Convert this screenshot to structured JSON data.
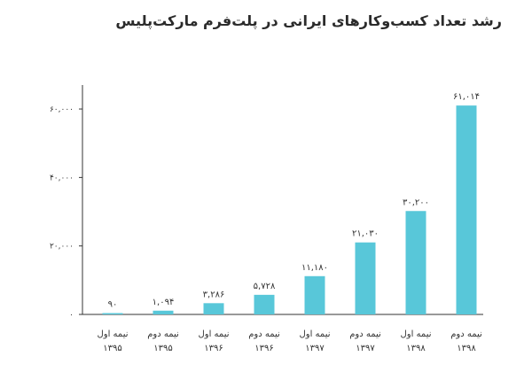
{
  "chart_data": {
    "type": "bar",
    "title": "رشد تعداد کسب‌وکارهای ایرانی در پلت‌فرم مارکت‌پلیس",
    "categories": [
      [
        "نیمه اول",
        "۱۳۹۵"
      ],
      [
        "نیمه دوم",
        "۱۳۹۵"
      ],
      [
        "نیمه اول",
        "۱۳۹۶"
      ],
      [
        "نیمه دوم",
        "۱۳۹۶"
      ],
      [
        "نیمه اول",
        "۱۳۹۷"
      ],
      [
        "نیمه دوم",
        "۱۳۹۷"
      ],
      [
        "نیمه اول",
        "۱۳۹۸"
      ],
      [
        "نیمه دوم",
        "۱۳۹۸"
      ]
    ],
    "values": [
      90,
      1094,
      3286,
      5728,
      11180,
      21030,
      30200,
      61014
    ],
    "value_labels": [
      "۹۰",
      "۱,۰۹۴",
      "۳,۲۸۶",
      "۵,۷۲۸",
      "۱۱,۱۸۰",
      "۲۱,۰۳۰",
      "۳۰,۲۰۰",
      "۶۱,۰۱۴"
    ],
    "ylim": [
      0,
      67000
    ],
    "yticks": [
      0,
      20000,
      40000,
      60000
    ],
    "ytick_labels": [
      "۰",
      "۲۰,۰۰۰",
      "۴۰,۰۰۰",
      "۶۰,۰۰۰"
    ],
    "xlabel": "",
    "ylabel": "",
    "grid": false,
    "bar_color": "#58c7d9",
    "axis_color": "#333333"
  }
}
